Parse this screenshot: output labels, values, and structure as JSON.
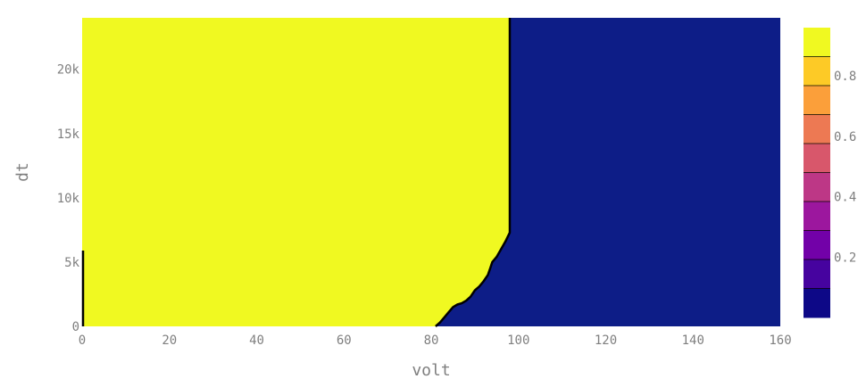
{
  "chart_data": {
    "type": "heatmap",
    "subtype": "contour",
    "title": "",
    "xlabel": "volt",
    "ylabel": "dt",
    "xlim": [
      0,
      160
    ],
    "ylim": [
      0,
      24000
    ],
    "x_ticks": [
      0,
      20,
      40,
      60,
      80,
      100,
      120,
      140,
      160
    ],
    "x_tick_labels": [
      "0",
      "20",
      "40",
      "60",
      "80",
      "100",
      "120",
      "140",
      "160"
    ],
    "y_ticks": [
      0,
      5000,
      10000,
      15000,
      20000
    ],
    "y_tick_labels": [
      "0",
      "5k",
      "10k",
      "15k",
      "20k"
    ],
    "grid": false,
    "colorscale": "Plasma",
    "regions": [
      {
        "level": 1,
        "color": "#f0f921"
      },
      {
        "level": 0,
        "color": "#0d1d87"
      }
    ],
    "boundary": {
      "color": "#000000",
      "points": [
        [
          81,
          0
        ],
        [
          82,
          300
        ],
        [
          83,
          700
        ],
        [
          84,
          1100
        ],
        [
          85,
          1500
        ],
        [
          86,
          1700
        ],
        [
          87,
          1800
        ],
        [
          88,
          2000
        ],
        [
          89,
          2300
        ],
        [
          90,
          2800
        ],
        [
          91,
          3100
        ],
        [
          92,
          3500
        ],
        [
          93,
          4000
        ],
        [
          93.5,
          4500
        ],
        [
          94,
          5000
        ],
        [
          95,
          5400
        ],
        [
          96,
          6000
        ],
        [
          97,
          6600
        ],
        [
          98,
          7300
        ],
        [
          98,
          24000
        ]
      ],
      "left_edge": [
        [
          0,
          0
        ],
        [
          0,
          5900
        ]
      ]
    },
    "colorbar": {
      "tick_values": [
        0.2,
        0.4,
        0.6,
        0.8
      ],
      "tick_labels": [
        "0.2",
        "0.4",
        "0.6",
        "0.8"
      ],
      "range": [
        0,
        0.96
      ],
      "bands": [
        "#0d0887",
        "#46039f",
        "#7201a8",
        "#9c179e",
        "#bd3786",
        "#d8576b",
        "#ed7953",
        "#fb9f3a",
        "#fdca26",
        "#f0f921"
      ]
    }
  }
}
